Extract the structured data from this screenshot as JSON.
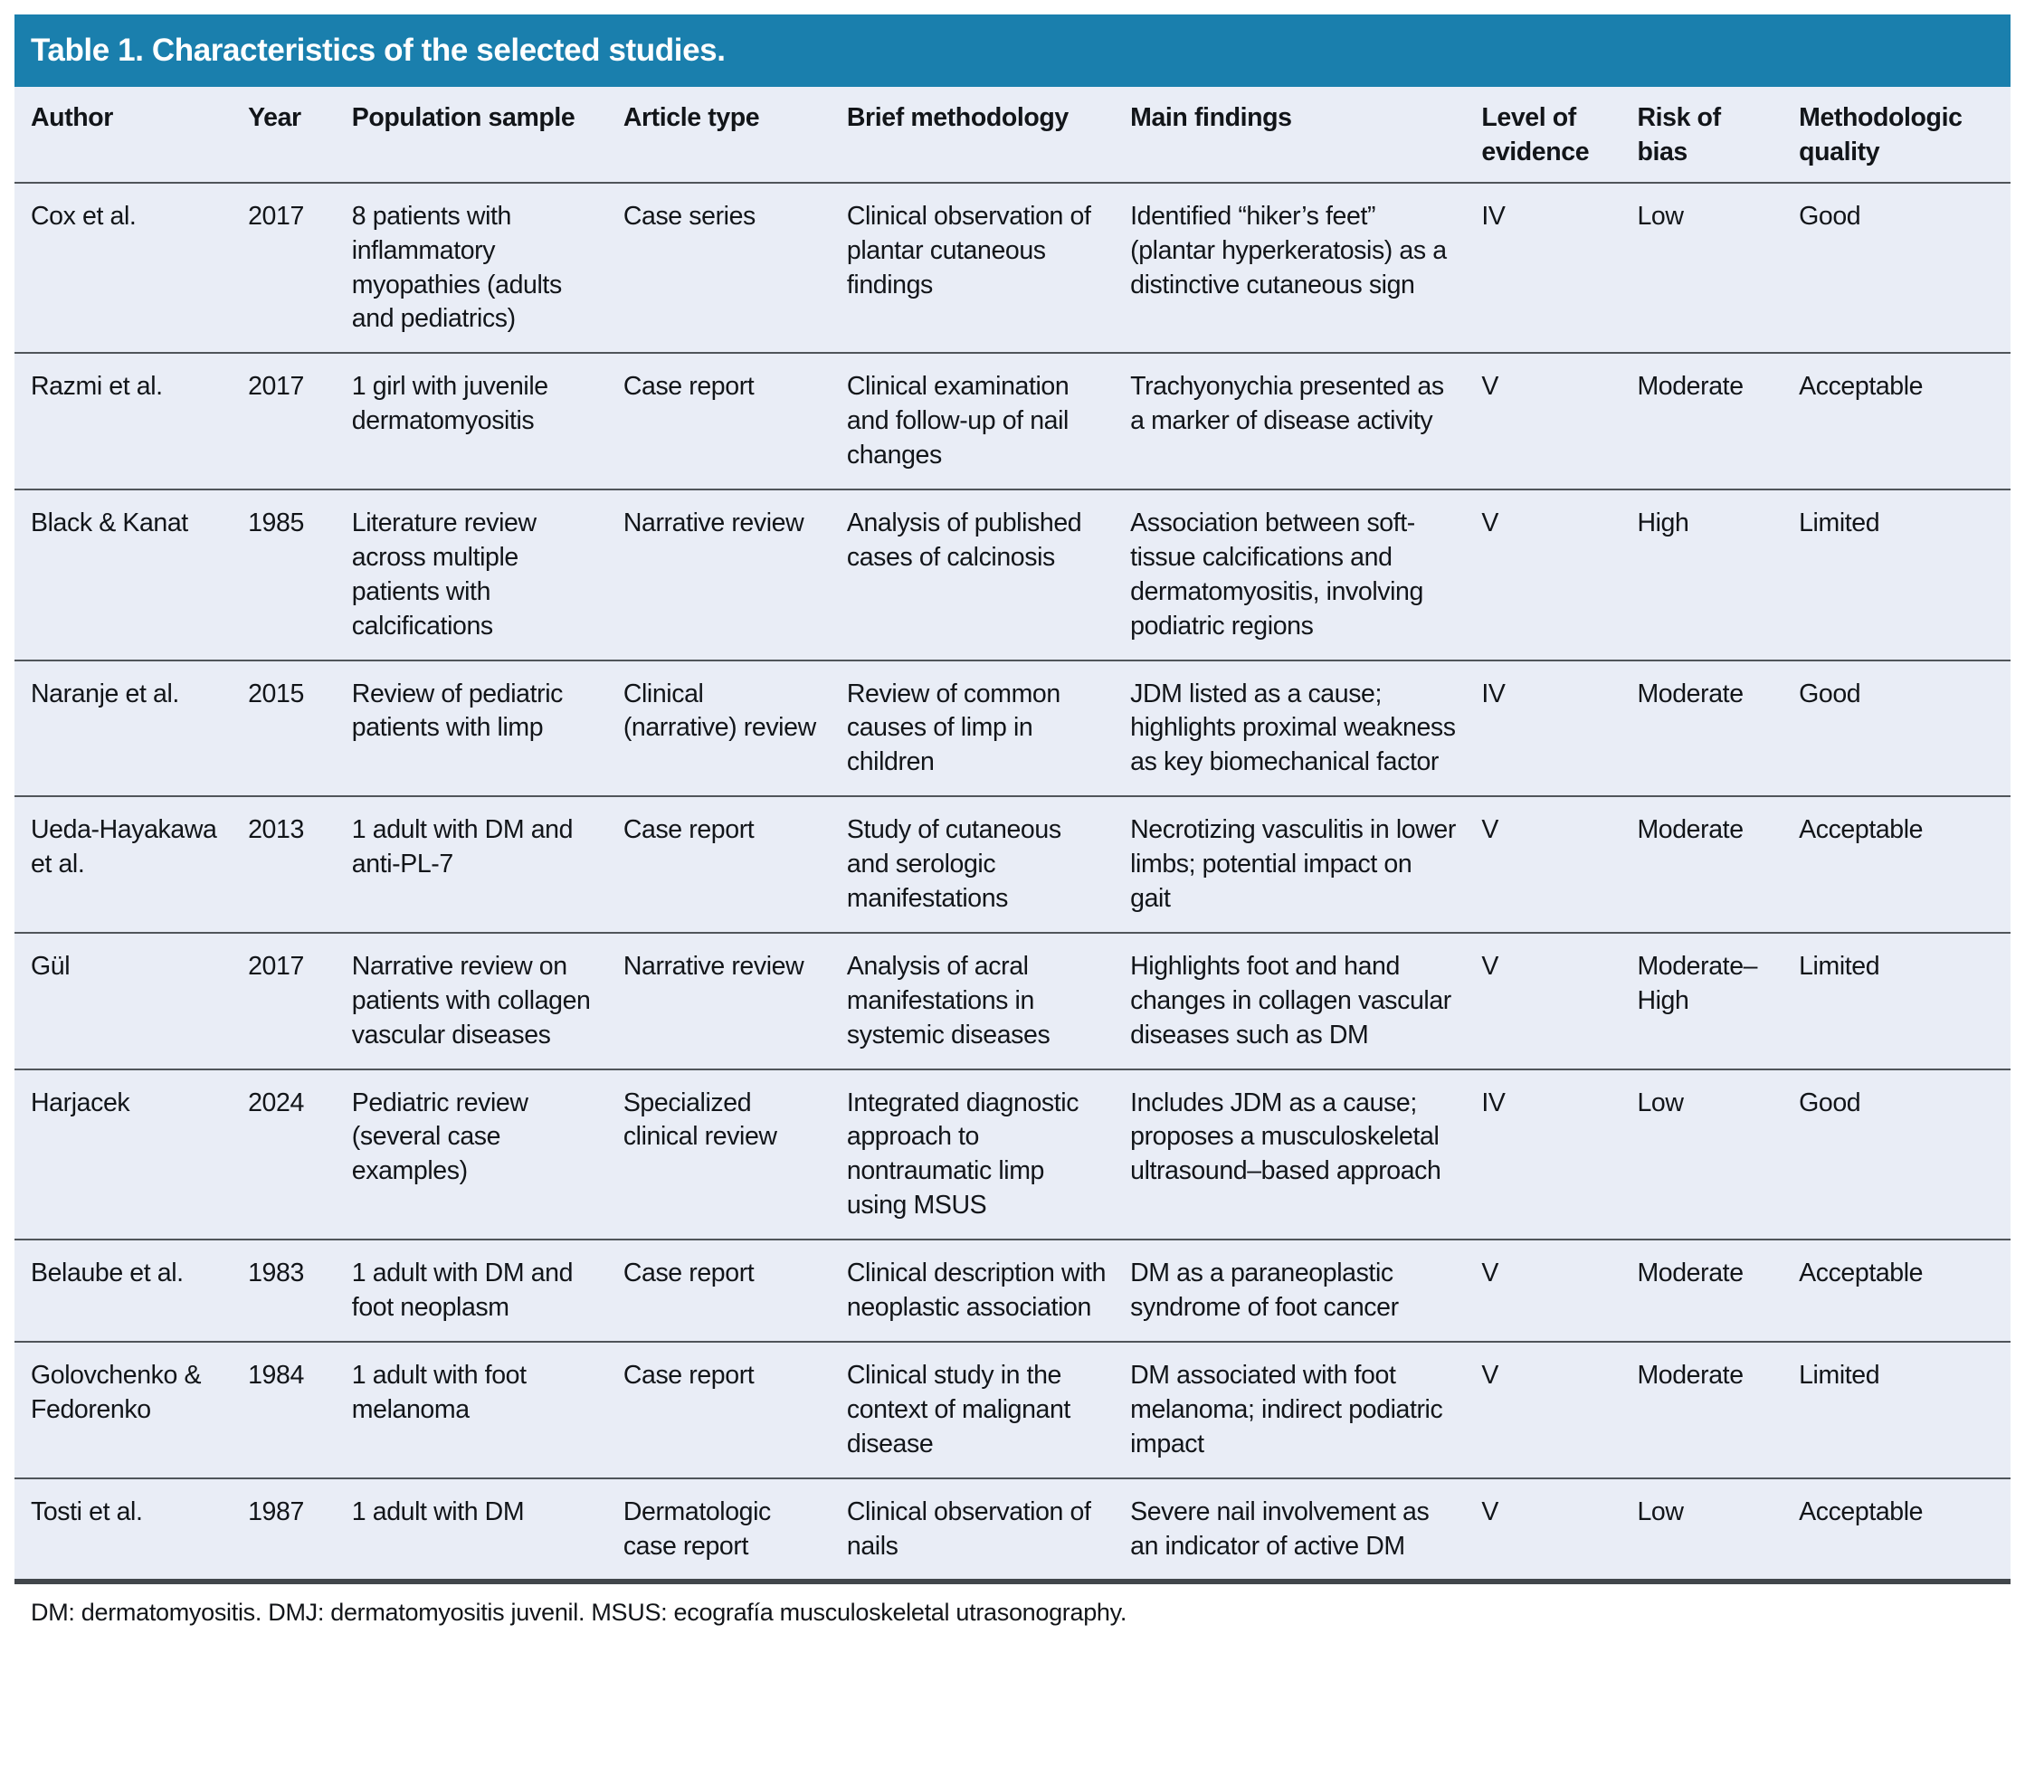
{
  "table": {
    "title": "Table 1. Characteristics of the selected studies.",
    "columns": [
      "Author",
      "Year",
      "Population sample",
      "Article type",
      "Brief methodology",
      "Main findings",
      "Level of evidence",
      "Risk of bias",
      "Methodologic quality"
    ],
    "rows": [
      [
        "Cox et al.",
        "2017",
        "8 patients with inflammatory myopathies (adults and pediatrics)",
        "Case series",
        "Clinical observation of plantar cutaneous findings",
        "Identified “hiker’s feet” (plantar hyperkeratosis) as a distinctive cutaneous sign",
        "IV",
        "Low",
        "Good"
      ],
      [
        "Razmi et al.",
        "2017",
        "1 girl with juvenile dermatomyositis",
        "Case report",
        "Clinical examination and follow-up of nail changes",
        "Trachyonychia presented as a marker of disease activity",
        "V",
        "Moderate",
        "Acceptable"
      ],
      [
        "Black & Kanat",
        "1985",
        "Literature review across multiple patients with calcifications",
        "Narrative review",
        "Analysis of published cases of calcinosis",
        "Association between soft-tissue calcifications and dermatomyositis, involving podiatric regions",
        "V",
        "High",
        "Limited"
      ],
      [
        "Naranje et al.",
        "2015",
        "Review of pediatric patients with limp",
        "Clinical (narrative) review",
        "Review of common causes of limp in children",
        "JDM listed as a cause; highlights proximal weakness as key biomechanical factor",
        "IV",
        "Moderate",
        "Good"
      ],
      [
        "Ueda-Hayakawa et al.",
        "2013",
        "1 adult with DM and anti-PL-7",
        "Case report",
        "Study of cutaneous and serologic manifestations",
        "Necrotizing vasculitis in lower limbs; potential impact on gait",
        "V",
        "Moderate",
        "Acceptable"
      ],
      [
        "Gül",
        "2017",
        "Narrative review on patients with collagen vascular diseases",
        "Narrative review",
        "Analysis of acral manifestations in systemic diseases",
        "Highlights foot and hand changes in collagen vascular diseases such as DM",
        "V",
        "Moderate–High",
        "Limited"
      ],
      [
        "Harjacek",
        "2024",
        "Pediatric review (several case examples)",
        "Specialized clinical review",
        "Integrated diagnostic approach to nontraumatic limp using MSUS",
        "Includes JDM as a cause; proposes a musculoskeletal ultrasound–based approach",
        "IV",
        "Low",
        "Good"
      ],
      [
        "Belaube et al.",
        "1983",
        "1 adult with DM and foot neoplasm",
        "Case report",
        "Clinical description with neoplastic association",
        "DM as a paraneoplastic syndrome of foot cancer",
        "V",
        "Moderate",
        "Acceptable"
      ],
      [
        "Golovchenko & Fedorenko",
        "1984",
        "1 adult with foot melanoma",
        "Case report",
        "Clinical study in the context of malignant disease",
        "DM associated with foot melanoma; indirect podiatric impact",
        "V",
        "Moderate",
        "Limited"
      ],
      [
        "Tosti et al.",
        "1987",
        "1 adult with DM",
        "Dermatologic case report",
        "Clinical observation of nails",
        "Severe nail involvement as an indicator of active DM",
        "V",
        "Low",
        "Acceptable"
      ]
    ],
    "footnote": "DM: dermatomyositis. DMJ: dermatomyositis juvenil. MSUS: ecografía musculoskeletal utrasonography."
  },
  "colors": {
    "title_bar_bg": "#1A7FAD",
    "title_text": "#FFFFFF",
    "table_bg": "#E9EDF6",
    "row_divider": "#50555A",
    "body_text": "#121519"
  }
}
